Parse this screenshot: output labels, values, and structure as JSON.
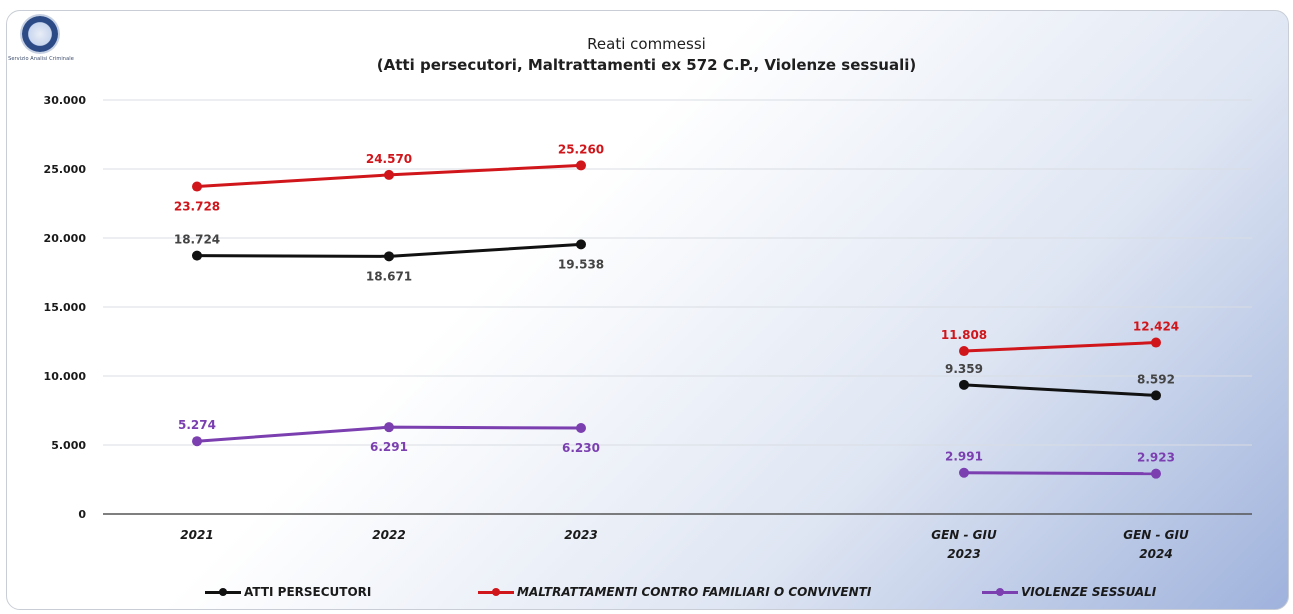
{
  "chart_data": {
    "type": "line",
    "title_line1": "Reati commessi",
    "title_line2": "(Atti persecutori, Maltrattamenti ex 572 C.P., Violenze sessuali)",
    "categories": [
      {
        "line1": "2021",
        "line2": ""
      },
      {
        "line1": "2022",
        "line2": ""
      },
      {
        "line1": "2023",
        "line2": ""
      },
      {
        "line1": "GEN - GIU",
        "line2": "2023"
      },
      {
        "line1": "GEN - GIU",
        "line2": "2024"
      }
    ],
    "ylim": [
      0,
      30000
    ],
    "yticks": [
      {
        "value": 0,
        "label": "0"
      },
      {
        "value": 5000,
        "label": "5.000"
      },
      {
        "value": 10000,
        "label": "10.000"
      },
      {
        "value": 15000,
        "label": "15.000"
      },
      {
        "value": 20000,
        "label": "20.000"
      },
      {
        "value": 25000,
        "label": "25.000"
      },
      {
        "value": 30000,
        "label": "30.000"
      }
    ],
    "grid": true,
    "legend_position": "bottom",
    "series": [
      {
        "name": "ATTI PERSECUTORI",
        "color": "#111111",
        "values": [
          18724,
          18671,
          19538,
          9359,
          8592
        ],
        "labels": [
          "18.724",
          "18.671",
          "19.538",
          "9.359",
          "8.592"
        ],
        "label_pos": [
          "above",
          "below",
          "below",
          "above",
          "above"
        ]
      },
      {
        "name": "MALTRATTAMENTI CONTRO FAMILIARI O CONVIVENTI",
        "color": "#d0161b",
        "values": [
          23728,
          24570,
          25260,
          11808,
          12424
        ],
        "labels": [
          "23.728",
          "24.570",
          "25.260",
          "11.808",
          "12.424"
        ],
        "label_pos": [
          "below",
          "above",
          "above",
          "above",
          "above"
        ]
      },
      {
        "name": "VIOLENZE SESSUALI",
        "color": "#7b3fb0",
        "values": [
          5274,
          6291,
          6230,
          2991,
          2923
        ],
        "labels": [
          "5.274",
          "6.291",
          "6.230",
          "2.991",
          "2.923"
        ],
        "label_pos": [
          "above",
          "below",
          "below",
          "above",
          "above"
        ]
      }
    ],
    "segments": [
      [
        0,
        1,
        2
      ],
      [
        3,
        4
      ]
    ]
  },
  "logo_caption": "Servizio Analisi Criminale"
}
